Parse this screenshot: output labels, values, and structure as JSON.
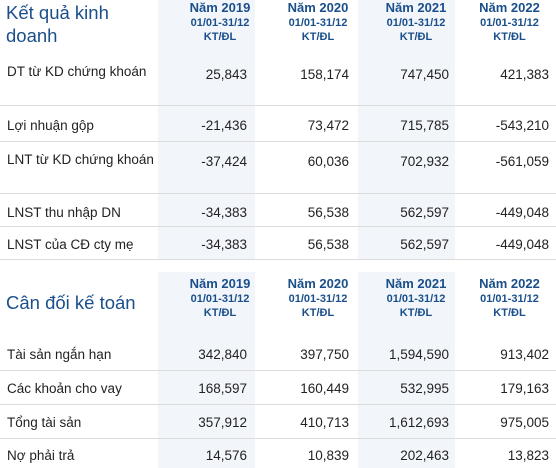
{
  "kqkd": {
    "title": "Kết quả kinh doanh",
    "columns": [
      {
        "year": "Năm 2019",
        "range": "01/01-31/12",
        "unit": "KT/ĐL"
      },
      {
        "year": "Năm 2020",
        "range": "01/01-31/12",
        "unit": "KT/ĐL"
      },
      {
        "year": "Năm 2021",
        "range": "01/01-31/12",
        "unit": "KT/ĐL"
      },
      {
        "year": "Năm 2022",
        "range": "01/01-31/12",
        "unit": "KT/ĐL"
      }
    ],
    "rows": [
      {
        "label": "DT từ KD chứng khoán",
        "values": [
          "25,843",
          "158,174",
          "747,450",
          "421,383"
        ]
      },
      {
        "label": "Lợi nhuận gộp",
        "values": [
          "-21,436",
          "73,472",
          "715,785",
          "-543,210"
        ]
      },
      {
        "label": "LNT từ KD chứng khoán",
        "values": [
          "-37,424",
          "60,036",
          "702,932",
          "-561,059"
        ]
      },
      {
        "label": "LNST thu nhập DN",
        "values": [
          "-34,383",
          "56,538",
          "562,597",
          "-449,048"
        ]
      },
      {
        "label": "LNST của CĐ cty mẹ",
        "values": [
          "-34,383",
          "56,538",
          "562,597",
          "-449,048"
        ]
      }
    ]
  },
  "cdkt": {
    "title": "Cân đối kế toán",
    "columns": [
      {
        "year": "Năm 2019",
        "range": "01/01-31/12",
        "unit": "KT/ĐL"
      },
      {
        "year": "Năm 2020",
        "range": "01/01-31/12",
        "unit": "KT/ĐL"
      },
      {
        "year": "Năm 2021",
        "range": "01/01-31/12",
        "unit": "KT/ĐL"
      },
      {
        "year": "Năm 2022",
        "range": "01/01-31/12",
        "unit": "KT/ĐL"
      }
    ],
    "rows": [
      {
        "label": "Tài sản ngắn hạn",
        "values": [
          "342,840",
          "397,750",
          "1,594,590",
          "913,402"
        ]
      },
      {
        "label": "Các khoản cho vay",
        "values": [
          "168,597",
          "160,449",
          "532,995",
          "179,163"
        ]
      },
      {
        "label": "Tổng tài sản",
        "values": [
          "357,912",
          "410,713",
          "1,612,693",
          "975,005"
        ]
      },
      {
        "label": "Nợ phải trả",
        "values": [
          "14,576",
          "10,839",
          "202,463",
          "13,823"
        ]
      }
    ]
  },
  "colors": {
    "header_blue": "#1a4f8b",
    "strip_bg": "#f2f6fb",
    "row_border": "#dcdcdc"
  }
}
